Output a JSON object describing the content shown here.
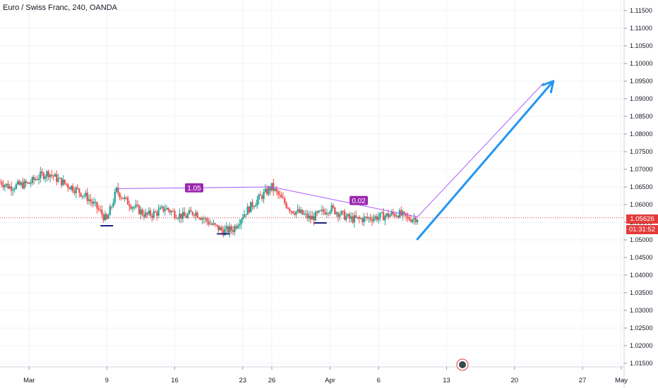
{
  "header": {
    "title": "Euro / Swiss Franc, 240, OANDA"
  },
  "price_scale": {
    "ticks": [
      "1.11500",
      "1.11000",
      "1.10500",
      "1.10000",
      "1.09500",
      "1.09000",
      "1.08500",
      "1.08000",
      "1.07500",
      "1.07000",
      "1.06500",
      "1.06000",
      "1.05500",
      "1.05000",
      "1.04500",
      "1.04000",
      "1.03500",
      "1.03000",
      "1.02500",
      "1.02000",
      "1.01500"
    ],
    "current_price": "1.05626",
    "countdown": "01:31:52"
  },
  "colors": {
    "bull": "#26a69a",
    "bear": "#ef5350",
    "pattern": "#a85cff",
    "pattern_label_bg": "#9c27b0",
    "arrow": "#2196f3",
    "price_line": "#e33b3b",
    "support_marks": "#1a237e"
  },
  "chart_data": {
    "type": "candlestick",
    "symbol": "Euro / Swiss Franc",
    "interval": "240",
    "source": "OANDA",
    "x_ticks": [
      "Mar",
      "9",
      "16",
      "23",
      "26",
      "Apr",
      "6",
      "13",
      "20",
      "27",
      "May"
    ],
    "ylim": [
      1.014,
      1.116
    ],
    "last_price": 1.05626,
    "pattern_labels": [
      "1.05",
      "0.02"
    ],
    "pattern_points": [
      {
        "date": "2020-03-10",
        "price": 1.0645
      },
      {
        "date": "2020-03-26",
        "price": 1.065
      },
      {
        "date": "2020-04-10",
        "price": 1.0565
      }
    ],
    "projection_line": [
      {
        "date": "2020-04-10",
        "price": 1.0565
      },
      {
        "date": "2020-04-23",
        "price": 1.0945
      }
    ],
    "arrow": [
      {
        "date": "2020-04-10",
        "price": 1.0502
      },
      {
        "date": "2020-04-24",
        "price": 1.095
      }
    ],
    "support_marks": [
      {
        "date": "2020-03-09",
        "price": 1.054
      },
      {
        "date": "2020-03-21",
        "price": 1.0517
      },
      {
        "date": "2020-03-31",
        "price": 1.0548
      }
    ],
    "path": [
      [
        "2020-02-27",
        1.0665
      ],
      [
        "2020-02-28",
        1.065
      ],
      [
        "2020-03-01",
        1.066
      ],
      [
        "2020-03-02",
        1.068
      ],
      [
        "2020-03-03",
        1.069
      ],
      [
        "2020-03-04",
        1.067
      ],
      [
        "2020-03-05",
        1.0655
      ],
      [
        "2020-03-06",
        1.064
      ],
      [
        "2020-03-07",
        1.062
      ],
      [
        "2020-03-08",
        1.059
      ],
      [
        "2020-03-09",
        1.0555
      ],
      [
        "2020-03-10",
        1.064
      ],
      [
        "2020-03-11",
        1.061
      ],
      [
        "2020-03-12",
        1.059
      ],
      [
        "2020-03-13",
        1.057
      ],
      [
        "2020-03-14",
        1.0575
      ],
      [
        "2020-03-15",
        1.059
      ],
      [
        "2020-03-16",
        1.0575
      ],
      [
        "2020-03-17",
        1.0565
      ],
      [
        "2020-03-18",
        1.058
      ],
      [
        "2020-03-19",
        1.056
      ],
      [
        "2020-03-20",
        1.054
      ],
      [
        "2020-03-21",
        1.0525
      ],
      [
        "2020-03-22",
        1.053
      ],
      [
        "2020-03-23",
        1.057
      ],
      [
        "2020-03-24",
        1.06
      ],
      [
        "2020-03-25",
        1.0625
      ],
      [
        "2020-03-26",
        1.065
      ],
      [
        "2020-03-27",
        1.0615
      ],
      [
        "2020-03-28",
        1.0585
      ],
      [
        "2020-03-29",
        1.0575
      ],
      [
        "2020-03-30",
        1.056
      ],
      [
        "2020-03-31",
        1.0575
      ],
      [
        "2020-04-01",
        1.059
      ],
      [
        "2020-04-02",
        1.0575
      ],
      [
        "2020-04-03",
        1.056
      ],
      [
        "2020-04-04",
        1.0558
      ],
      [
        "2020-04-05",
        1.0562
      ],
      [
        "2020-04-06",
        1.0565
      ],
      [
        "2020-04-07",
        1.057
      ],
      [
        "2020-04-08",
        1.0575
      ],
      [
        "2020-04-09",
        1.056
      ],
      [
        "2020-04-10",
        1.0563
      ]
    ]
  }
}
